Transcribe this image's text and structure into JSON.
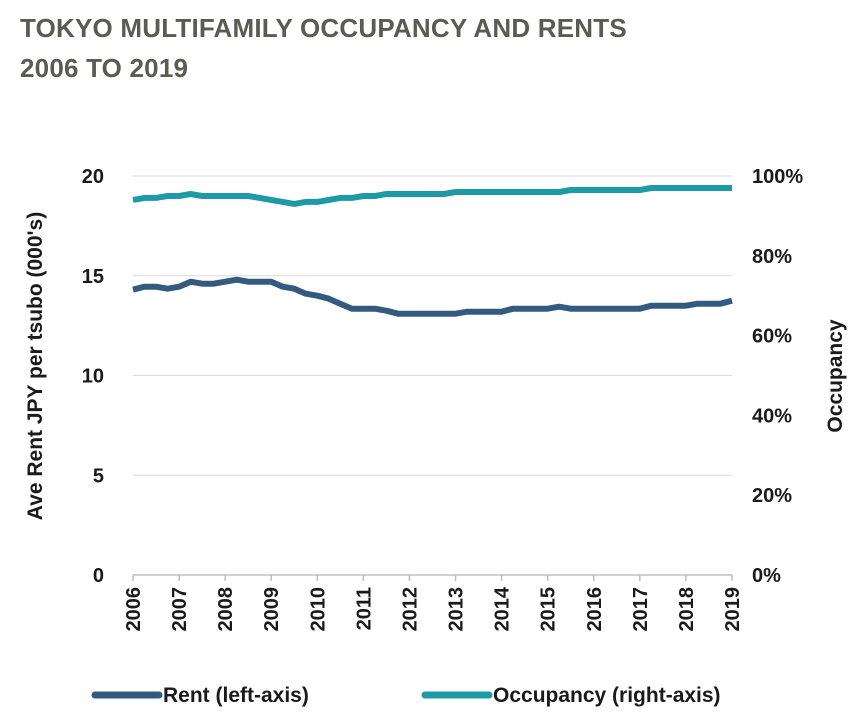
{
  "chart_data": {
    "type": "line",
    "title_line1": "TOKYO MULTIFAMILY OCCUPANCY AND RENTS",
    "title_line2": "2006 TO 2019",
    "ylabel_left": "Ave Rent JPY per tsubo (000's)",
    "ylabel_right": "Occupancy",
    "ylim_left": [
      0,
      20
    ],
    "yticks_left": [
      "0",
      "5",
      "10",
      "15",
      "20"
    ],
    "ylim_right": [
      0,
      100
    ],
    "yticks_right": [
      "0%",
      "20%",
      "40%",
      "60%",
      "80%",
      "100%"
    ],
    "xlim": [
      2006,
      2019
    ],
    "xticks": [
      "2006",
      "2007",
      "2008",
      "2009",
      "2010",
      "2011",
      "2012",
      "2013",
      "2014",
      "2015",
      "2016",
      "2017",
      "2018",
      "2019"
    ],
    "grid": true,
    "legend_position": "bottom",
    "series": [
      {
        "name": "Rent (left-axis)",
        "axis": "left",
        "color": "#345a7f",
        "x": [
          2006,
          2006.25,
          2006.5,
          2006.75,
          2007,
          2007.25,
          2007.5,
          2007.75,
          2008,
          2008.25,
          2008.5,
          2008.75,
          2009,
          2009.25,
          2009.5,
          2009.75,
          2010,
          2010.25,
          2010.5,
          2010.75,
          2011,
          2011.25,
          2011.5,
          2011.75,
          2012,
          2012.25,
          2012.5,
          2012.75,
          2013,
          2013.25,
          2013.5,
          2013.75,
          2014,
          2014.25,
          2014.5,
          2014.75,
          2015,
          2015.25,
          2015.5,
          2015.75,
          2016,
          2016.25,
          2016.5,
          2016.75,
          2017,
          2017.25,
          2017.5,
          2017.75,
          2018,
          2018.25,
          2018.5,
          2018.75,
          2019
        ],
        "values": [
          14.3,
          14.45,
          14.45,
          14.35,
          14.45,
          14.7,
          14.6,
          14.6,
          14.7,
          14.8,
          14.7,
          14.7,
          14.7,
          14.45,
          14.35,
          14.1,
          14.0,
          13.85,
          13.6,
          13.35,
          13.35,
          13.35,
          13.25,
          13.1,
          13.1,
          13.1,
          13.1,
          13.1,
          13.1,
          13.2,
          13.2,
          13.2,
          13.2,
          13.35,
          13.35,
          13.35,
          13.35,
          13.45,
          13.35,
          13.35,
          13.35,
          13.35,
          13.35,
          13.35,
          13.35,
          13.5,
          13.5,
          13.5,
          13.5,
          13.6,
          13.6,
          13.6,
          13.75
        ]
      },
      {
        "name": "Occupancy (right-axis)",
        "axis": "right",
        "color": "#1d9aa6",
        "x": [
          2006,
          2006.25,
          2006.5,
          2006.75,
          2007,
          2007.25,
          2007.5,
          2007.75,
          2008,
          2008.25,
          2008.5,
          2008.75,
          2009,
          2009.25,
          2009.5,
          2009.75,
          2010,
          2010.25,
          2010.5,
          2010.75,
          2011,
          2011.25,
          2011.5,
          2011.75,
          2012,
          2012.25,
          2012.5,
          2012.75,
          2013,
          2013.25,
          2013.5,
          2013.75,
          2014,
          2014.25,
          2014.5,
          2014.75,
          2015,
          2015.25,
          2015.5,
          2015.75,
          2016,
          2016.25,
          2016.5,
          2016.75,
          2017,
          2017.25,
          2017.5,
          2017.75,
          2018,
          2018.25,
          2018.5,
          2018.75,
          2019
        ],
        "values": [
          94.0,
          94.5,
          94.5,
          95.0,
          95.0,
          95.5,
          95.0,
          95.0,
          95.0,
          95.0,
          95.0,
          94.5,
          94.0,
          93.5,
          93.0,
          93.5,
          93.5,
          94.0,
          94.5,
          94.5,
          95.0,
          95.0,
          95.5,
          95.5,
          95.5,
          95.5,
          95.5,
          95.5,
          96.0,
          96.0,
          96.0,
          96.0,
          96.0,
          96.0,
          96.0,
          96.0,
          96.0,
          96.0,
          96.5,
          96.5,
          96.5,
          96.5,
          96.5,
          96.5,
          96.5,
          97.0,
          97.0,
          97.0,
          97.0,
          97.0,
          97.0,
          97.0,
          97.0
        ]
      }
    ]
  }
}
